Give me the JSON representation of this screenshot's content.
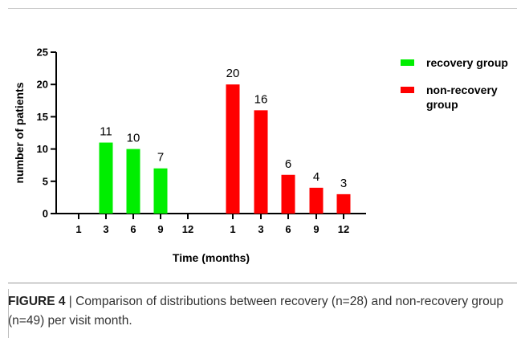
{
  "chart_data": {
    "type": "bar",
    "title": "",
    "xlabel": "Time (months)",
    "ylabel": "number of patients",
    "ylim": [
      0,
      25
    ],
    "yticks": [
      0,
      5,
      10,
      15,
      20,
      25
    ],
    "grid": false,
    "legend_position": "top-right",
    "series": [
      {
        "name": "recovery group",
        "color": "#00ee00",
        "categories": [
          "1",
          "3",
          "6",
          "9",
          "12"
        ],
        "values": [
          0,
          11,
          10,
          7,
          0
        ],
        "labels": [
          "",
          "11",
          "10",
          "7",
          ""
        ]
      },
      {
        "name": "non-recovery\ngroup",
        "color": "#ff0000",
        "categories": [
          "1",
          "3",
          "6",
          "9",
          "12"
        ],
        "values": [
          20,
          16,
          6,
          4,
          3
        ],
        "labels": [
          "20",
          "16",
          "6",
          "4",
          "3"
        ]
      }
    ]
  },
  "caption": {
    "label": "FIGURE 4",
    "separator": "|",
    "text": "Comparison of distributions between recovery (n=28) and non-recovery group (n=49) per visit month."
  }
}
